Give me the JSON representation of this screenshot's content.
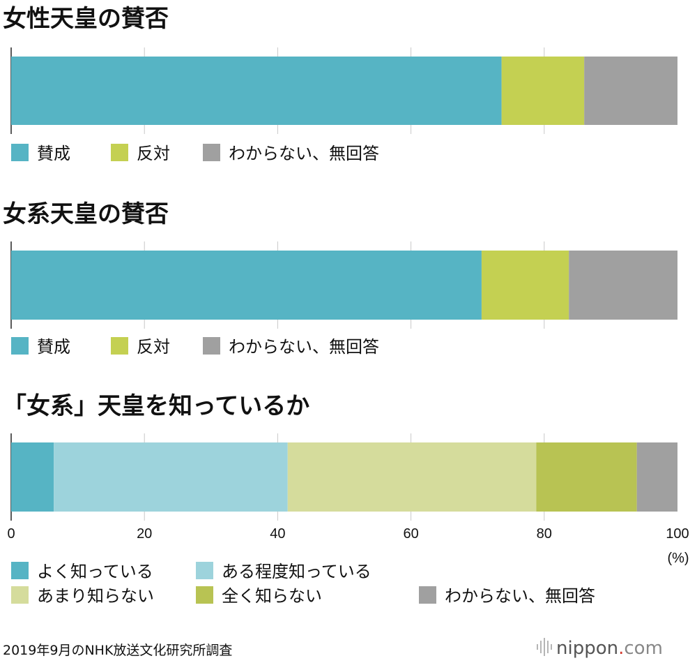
{
  "chart_data": [
    {
      "type": "bar",
      "orientation": "horizontal",
      "stacked": true,
      "title": "女性天皇の賛否",
      "series": [
        {
          "name": "賛成",
          "values": [
            73.6
          ],
          "color": "#56b4c4"
        },
        {
          "name": "反対",
          "values": [
            12.4
          ],
          "color": "#c4d052"
        },
        {
          "name": "わからない、無回答",
          "values": [
            14.0
          ],
          "color": "#a0a0a0"
        }
      ],
      "xlim": [
        0,
        100
      ],
      "grid": true,
      "legend": "bottom-left"
    },
    {
      "type": "bar",
      "orientation": "horizontal",
      "stacked": true,
      "title": "女系天皇の賛否",
      "series": [
        {
          "name": "賛成",
          "values": [
            70.6
          ],
          "color": "#56b4c4"
        },
        {
          "name": "反対",
          "values": [
            13.1
          ],
          "color": "#c4d052"
        },
        {
          "name": "わからない、無回答",
          "values": [
            16.3
          ],
          "color": "#a0a0a0"
        }
      ],
      "xlim": [
        0,
        100
      ],
      "grid": true,
      "legend": "bottom-left"
    },
    {
      "type": "bar",
      "orientation": "horizontal",
      "stacked": true,
      "title": "「女系」天皇を知っているか",
      "series": [
        {
          "name": "よく知っている",
          "values": [
            6.4
          ],
          "color": "#56b4c4"
        },
        {
          "name": "ある程度知っている",
          "values": [
            35.1
          ],
          "color": "#9dd3dc"
        },
        {
          "name": "あまり知らない",
          "values": [
            37.3
          ],
          "color": "#d5dc9c"
        },
        {
          "name": "全く知らない",
          "values": [
            15.1
          ],
          "color": "#b8c353"
        },
        {
          "name": "わからない、無回答",
          "values": [
            6.1
          ],
          "color": "#a0a0a0"
        }
      ],
      "xlim": [
        0,
        100
      ],
      "xticks": [
        "0",
        "20",
        "40",
        "60",
        "80",
        "100"
      ],
      "xunit": "(%)",
      "grid": true,
      "legend": "bottom"
    }
  ],
  "footer": {
    "source": "2019年9月のNHK放送文化研究所調査",
    "brand_main": "nippon",
    "brand_dot": ".",
    "brand_tld": "com"
  }
}
